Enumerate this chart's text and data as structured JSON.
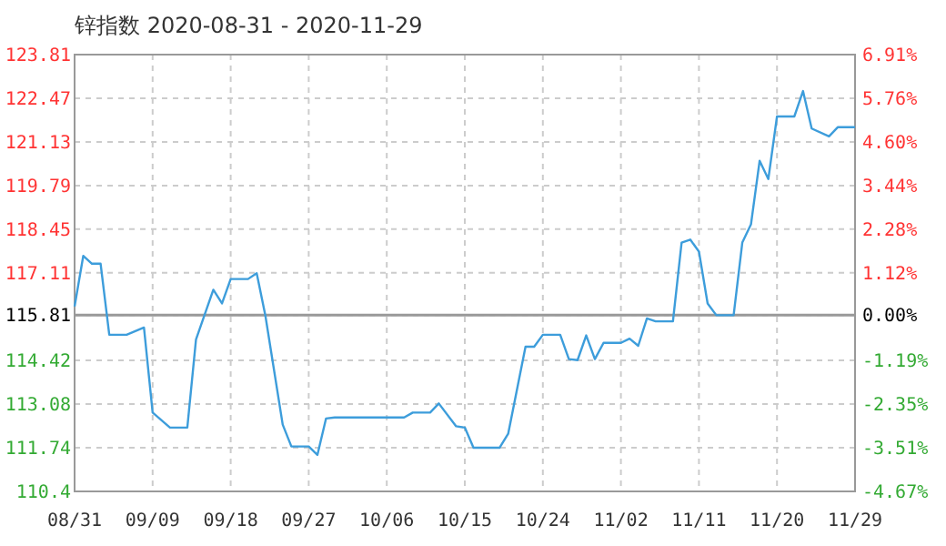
{
  "chart_data": {
    "type": "line",
    "title": "锌指数 2020-08-31 - 2020-11-29",
    "x": [
      "2020-08-31",
      "2020-09-01",
      "2020-09-02",
      "2020-09-03",
      "2020-09-04",
      "2020-09-06",
      "2020-09-08",
      "2020-09-09",
      "2020-09-11",
      "2020-09-13",
      "2020-09-14",
      "2020-09-16",
      "2020-09-17",
      "2020-09-18",
      "2020-09-20",
      "2020-09-21",
      "2020-09-22",
      "2020-09-24",
      "2020-09-25",
      "2020-09-27",
      "2020-09-28",
      "2020-09-29",
      "2020-09-30",
      "2020-10-08",
      "2020-10-09",
      "2020-10-11",
      "2020-10-12",
      "2020-10-14",
      "2020-10-15",
      "2020-10-16",
      "2020-10-19",
      "2020-10-20",
      "2020-10-22",
      "2020-10-23",
      "2020-10-24",
      "2020-10-26",
      "2020-10-27",
      "2020-10-28",
      "2020-10-29",
      "2020-10-30",
      "2020-10-31",
      "2020-11-02",
      "2020-11-03",
      "2020-11-04",
      "2020-11-05",
      "2020-11-06",
      "2020-11-08",
      "2020-11-09",
      "2020-11-10",
      "2020-11-11",
      "2020-11-12",
      "2020-11-13",
      "2020-11-15",
      "2020-11-16",
      "2020-11-17",
      "2020-11-18",
      "2020-11-19",
      "2020-11-20",
      "2020-11-22",
      "2020-11-23",
      "2020-11-24",
      "2020-11-26",
      "2020-11-27",
      "2020-11-29"
    ],
    "series": [
      {
        "color": "#3d9ddb",
        "values": [
          116.08,
          117.63,
          117.39,
          117.39,
          115.21,
          115.21,
          115.43,
          112.82,
          112.36,
          112.36,
          115.06,
          116.59,
          116.17,
          116.92,
          116.92,
          117.1,
          115.8,
          112.45,
          111.78,
          111.78,
          111.52,
          112.64,
          112.67,
          112.67,
          112.82,
          112.82,
          113.1,
          112.4,
          112.36,
          111.74,
          111.74,
          112.17,
          114.84,
          114.84,
          115.21,
          115.21,
          114.46,
          114.43,
          115.19,
          114.46,
          114.96,
          114.96,
          115.09,
          114.87,
          115.71,
          115.62,
          115.62,
          118.04,
          118.13,
          117.76,
          116.17,
          115.81,
          115.81,
          118.04,
          118.6,
          120.55,
          119.99,
          121.91,
          121.91,
          122.69,
          121.54,
          121.3,
          121.58,
          121.58
        ]
      }
    ],
    "xlim": [
      "2020-08-31",
      "2020-11-29"
    ],
    "xticks": [
      {
        "value": "2020-08-31",
        "label": "08/31"
      },
      {
        "value": "2020-09-09",
        "label": "09/09"
      },
      {
        "value": "2020-09-18",
        "label": "09/18"
      },
      {
        "value": "2020-09-27",
        "label": "09/27"
      },
      {
        "value": "2020-10-06",
        "label": "10/06"
      },
      {
        "value": "2020-10-15",
        "label": "10/15"
      },
      {
        "value": "2020-10-24",
        "label": "10/24"
      },
      {
        "value": "2020-11-02",
        "label": "11/02"
      },
      {
        "value": "2020-11-11",
        "label": "11/11"
      },
      {
        "value": "2020-11-20",
        "label": "11/20"
      },
      {
        "value": "2020-11-29",
        "label": "11/29"
      }
    ],
    "ylim": [
      110.4,
      123.81
    ],
    "yticks": [
      110.4,
      111.74,
      113.08,
      114.42,
      115.81,
      117.11,
      118.45,
      119.79,
      121.13,
      122.47,
      123.81
    ],
    "y2lim": [
      -4.67,
      6.91
    ],
    "y2ticks": [
      {
        "value": -4.67,
        "label": "-4.67%"
      },
      {
        "value": -3.51,
        "label": "-3.51%"
      },
      {
        "value": -2.35,
        "label": "-2.35%"
      },
      {
        "value": -1.19,
        "label": "-1.19%"
      },
      {
        "value": 0,
        "label": "0.00%"
      },
      {
        "value": 1.12,
        "label": "1.12%"
      },
      {
        "value": 2.28,
        "label": "2.28%"
      },
      {
        "value": 3.44,
        "label": "3.44%"
      },
      {
        "value": 4.6,
        "label": "4.60%"
      },
      {
        "value": 5.76,
        "label": "5.76%"
      },
      {
        "value": 6.91,
        "label": "6.91%"
      }
    ],
    "ref_lines": [
      {
        "axis": "y",
        "value": 115.81,
        "color": "#999999"
      }
    ],
    "grid": true,
    "marker": "none",
    "line_style": "solid"
  }
}
